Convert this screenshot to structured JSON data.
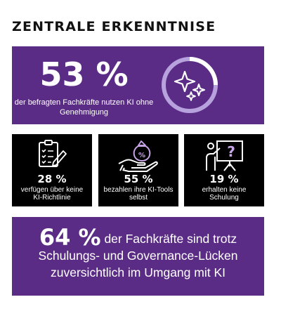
{
  "heading": "ZENTRALE ERKENNTNISE",
  "highlight": {
    "percent": "53 %",
    "description": "der befragten Fachkräfte nutzen KI ohne Genehmigung",
    "icon": "sparkles-icon"
  },
  "stats": [
    {
      "percent": "28 %",
      "description": "verfügen über keine KI-Richtlinie",
      "icon": "checklist-icon"
    },
    {
      "percent": "55 %",
      "description": "bezahlen ihre KI-Tools selbst",
      "icon": "money-bag-hand-icon"
    },
    {
      "percent": "19 %",
      "description": "erhalten keine Schulung",
      "icon": "presentation-question-icon"
    }
  ],
  "summary": {
    "percent": "64 %",
    "text": " der Fachkräfte sind trotz Schulungs- und Governance-Lücken zuversichtlich im Umgang mit KI"
  },
  "colors": {
    "purple": "#5b2c86",
    "ring_light": "#b8a2dd",
    "card_dark": "#000000",
    "text": "#ffffff"
  }
}
